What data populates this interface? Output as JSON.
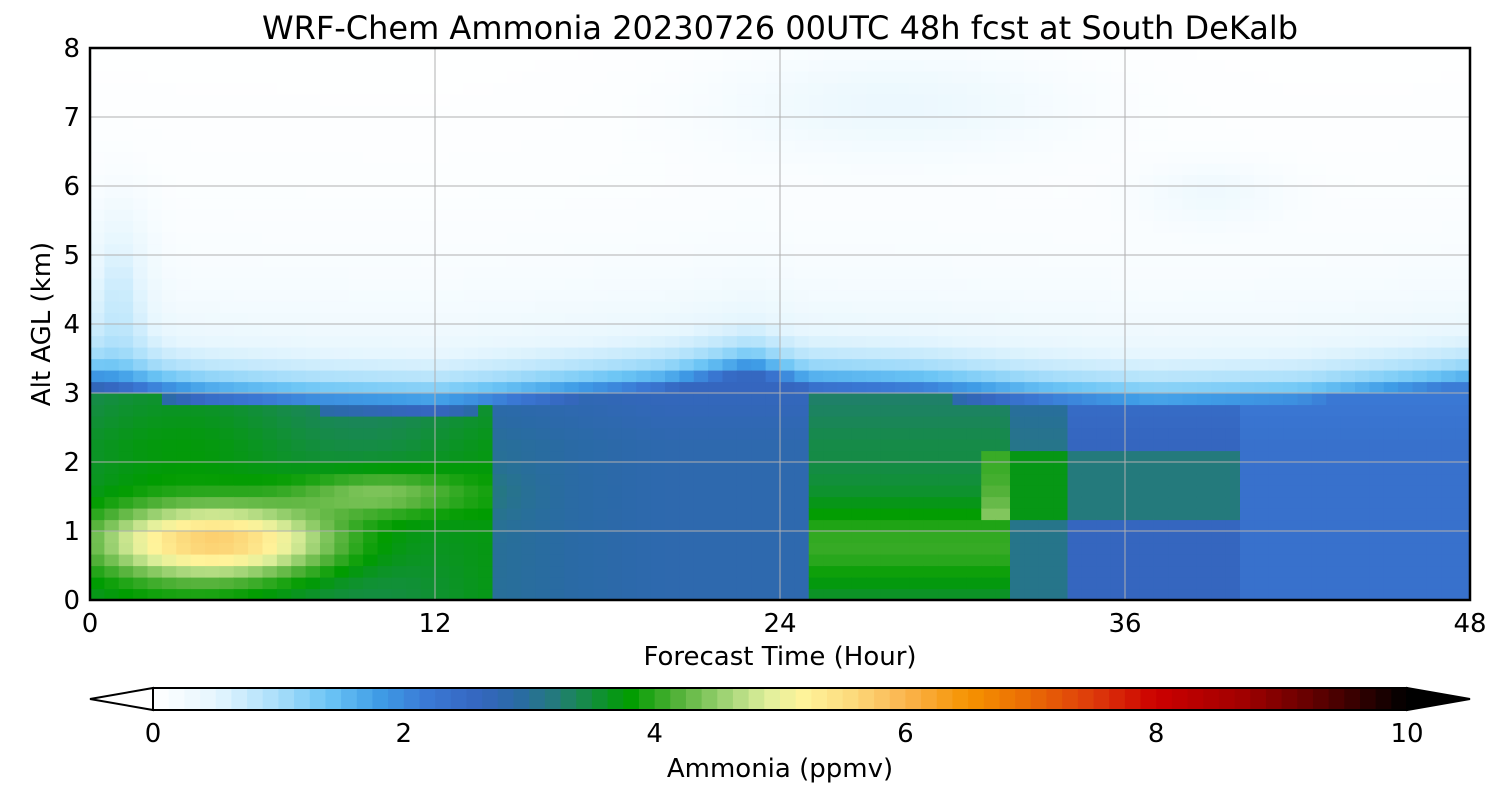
{
  "chart_data": {
    "type": "heatmap",
    "title": "WRF-Chem Ammonia  20230726 00UTC 48h fcst at South DeKalb",
    "xlabel": "Forecast Time (Hour)",
    "ylabel": "Alt AGL (km)",
    "xlim": [
      0,
      48
    ],
    "ylim": [
      0,
      8
    ],
    "xticks": [
      "0",
      "12",
      "24",
      "36",
      "48"
    ],
    "yticks": [
      "0",
      "1",
      "2",
      "3",
      "4",
      "5",
      "6",
      "7",
      "8"
    ],
    "grid": true,
    "x": [
      0,
      1,
      2,
      3,
      4,
      5,
      6,
      7,
      8,
      9,
      10,
      11,
      12,
      13,
      14,
      15,
      16,
      17,
      18,
      19,
      20,
      21,
      22,
      23,
      24,
      25,
      26,
      27,
      28,
      29,
      30,
      31,
      32,
      33,
      34,
      35,
      36,
      37,
      38,
      39,
      40,
      41,
      42,
      43,
      44,
      45,
      46,
      47,
      48
    ],
    "y": [
      0,
      0.5,
      1,
      1.5,
      2,
      2.5,
      3,
      3.5,
      4,
      4.5,
      5,
      5.5,
      6,
      6.5,
      7,
      7.5,
      8
    ],
    "colorbar": {
      "label": "Ammonia  (ppmv)",
      "ticks": [
        "0",
        "2",
        "4",
        "6",
        "8",
        "10"
      ],
      "range": [
        0,
        10
      ],
      "extend": "both"
    }
  }
}
